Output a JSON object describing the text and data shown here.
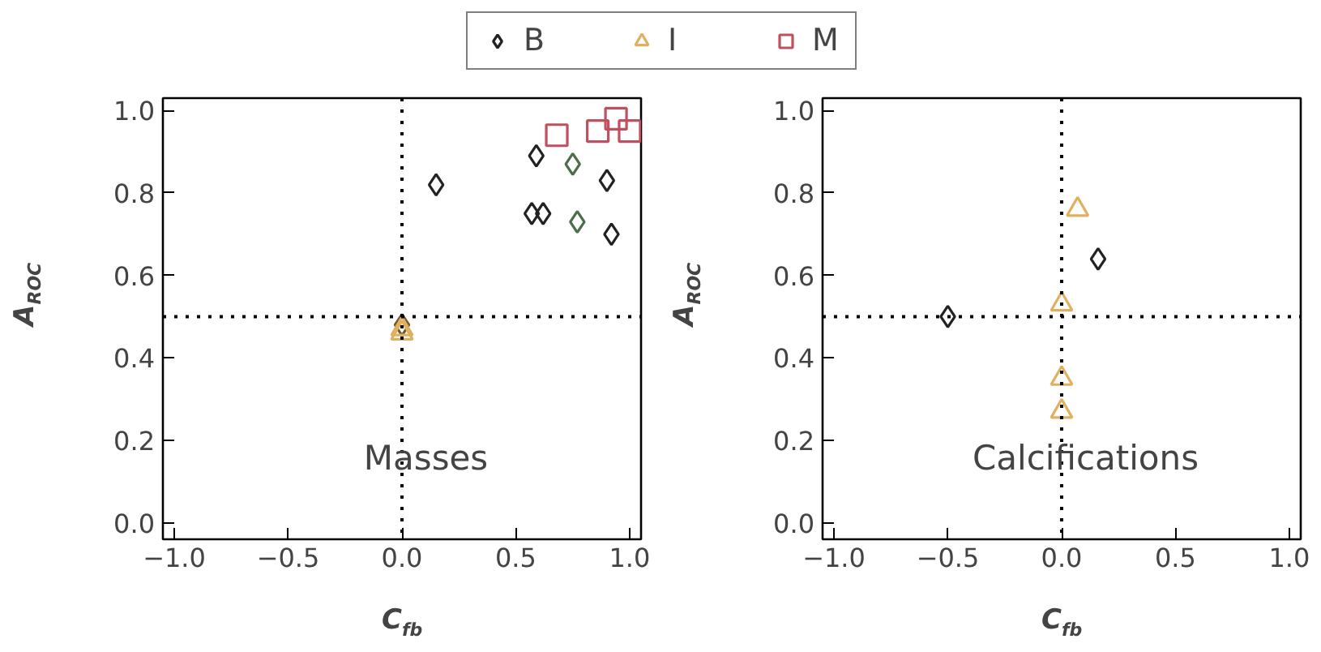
{
  "chart_data": [
    {
      "type": "scatter",
      "xlabel": "C$_{fb}$",
      "ylabel": "A$_{ROC}$",
      "annotations": [
        "Masses"
      ],
      "xlim": [
        -1.05,
        1.05
      ],
      "ylim": [
        -0.04,
        1.03
      ],
      "xticks": [
        {
          "value": -1,
          "label": "−1.0"
        },
        {
          "value": -0.5,
          "label": "−0.5"
        },
        {
          "value": 0,
          "label": "0.0"
        },
        {
          "value": 0.5,
          "label": "0.5"
        },
        {
          "value": 1,
          "label": "1.0"
        }
      ],
      "yticks": [
        {
          "value": 0,
          "label": "0.0"
        },
        {
          "value": 0.2,
          "label": "0.2"
        },
        {
          "value": 0.4,
          "label": "0.4"
        },
        {
          "value": 0.6,
          "label": "0.6"
        },
        {
          "value": 0.8,
          "label": "0.8"
        },
        {
          "value": 1,
          "label": "1.0"
        }
      ],
      "ref_lines": [
        {
          "axis": "x",
          "value": 0,
          "line_style": "dotted"
        },
        {
          "axis": "y",
          "value": 0.5,
          "line_style": "dotted"
        }
      ],
      "grid": false,
      "legend": "top",
      "series": [
        {
          "name": "B",
          "marker": "diamond",
          "color": "#222222",
          "colors": [
            "#222222",
            "#222222",
            "#4a6e4a",
            "#222222",
            "#222222",
            "#222222",
            "#4a6e4a",
            "#222222",
            "#6b5a2a"
          ],
          "x": [
            0.15,
            0.59,
            0.75,
            0.9,
            0.57,
            0.62,
            0.77,
            0.92,
            0
          ],
          "values": [
            0.82,
            0.89,
            0.87,
            0.83,
            0.75,
            0.75,
            0.73,
            0.7,
            0.48
          ]
        },
        {
          "name": "I",
          "marker": "triangle",
          "color": "#e0b060",
          "x": [
            0,
            0
          ],
          "values": [
            0.47,
            0.46
          ]
        },
        {
          "name": "M",
          "marker": "square",
          "color": "#c05060",
          "x": [
            0.68,
            0.86,
            0.94,
            1.0
          ],
          "values": [
            0.94,
            0.95,
            0.98,
            0.95
          ]
        }
      ]
    },
    {
      "type": "scatter",
      "xlabel": "C$_{fb}$",
      "ylabel": "A$_{ROC}$",
      "annotations": [
        "Calcifications"
      ],
      "xlim": [
        -1.05,
        1.05
      ],
      "ylim": [
        -0.04,
        1.03
      ],
      "xticks": [
        {
          "value": -1,
          "label": "−1.0"
        },
        {
          "value": -0.5,
          "label": "−0.5"
        },
        {
          "value": 0,
          "label": "0.0"
        },
        {
          "value": 0.5,
          "label": "0.5"
        },
        {
          "value": 1,
          "label": "1.0"
        }
      ],
      "yticks": [
        {
          "value": 0,
          "label": "0.0"
        },
        {
          "value": 0.2,
          "label": "0.2"
        },
        {
          "value": 0.4,
          "label": "0.4"
        },
        {
          "value": 0.6,
          "label": "0.6"
        },
        {
          "value": 0.8,
          "label": "0.8"
        },
        {
          "value": 1,
          "label": "1.0"
        }
      ],
      "ref_lines": [
        {
          "axis": "x",
          "value": 0,
          "line_style": "dotted"
        },
        {
          "axis": "y",
          "value": 0.5,
          "line_style": "dotted"
        }
      ],
      "grid": false,
      "series": [
        {
          "marker": "diamond",
          "color": "#222222",
          "x": [
            -0.5,
            0.16
          ],
          "values": [
            0.5,
            0.64
          ]
        },
        {
          "marker": "triangle",
          "color": "#e0b060",
          "x": [
            0.07,
            0,
            0,
            0
          ],
          "values": [
            0.76,
            0.53,
            0.35,
            0.27
          ]
        }
      ]
    }
  ]
}
